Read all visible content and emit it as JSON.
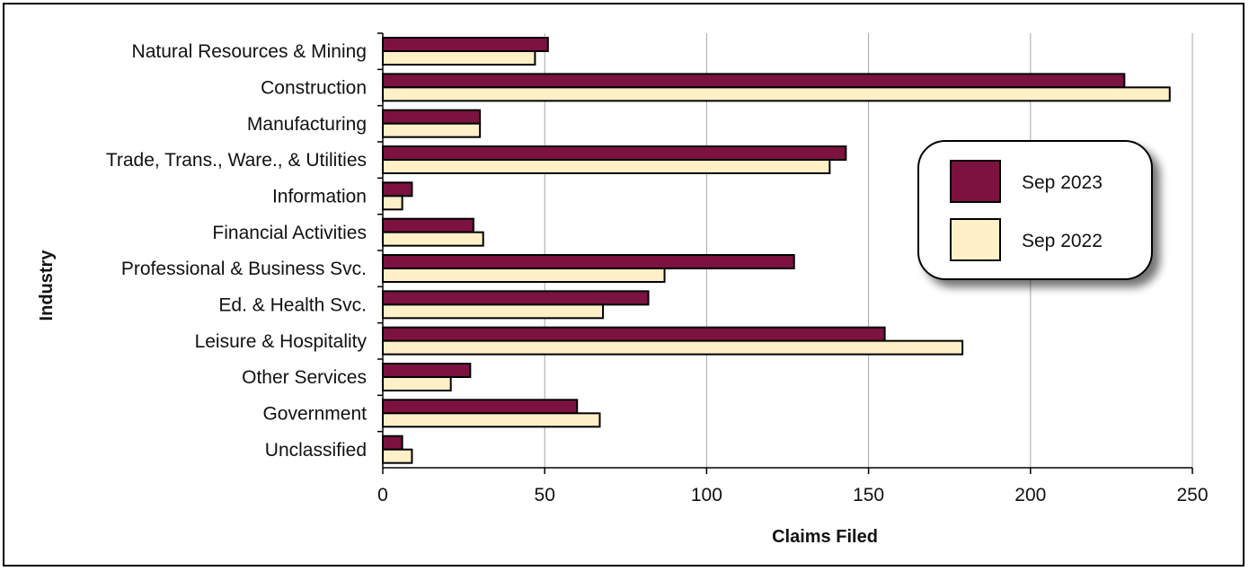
{
  "chart_data": {
    "type": "bar",
    "orientation": "horizontal",
    "categories": [
      "Natural Resources & Mining",
      "Construction",
      "Manufacturing",
      "Trade, Trans., Ware., & Utilities",
      "Information",
      "Financial Activities",
      "Professional & Business Svc.",
      "Ed. & Health Svc.",
      "Leisure & Hospitality",
      "Other Services",
      "Government",
      "Unclassified"
    ],
    "series": [
      {
        "name": "Sep 2023",
        "color": "#7b1240",
        "values": [
          51,
          229,
          30,
          143,
          9,
          28,
          127,
          82,
          155,
          27,
          60,
          6
        ]
      },
      {
        "name": "Sep 2022",
        "color": "#fff0c8",
        "values": [
          47,
          243,
          30,
          138,
          6,
          31,
          87,
          68,
          179,
          21,
          67,
          9
        ]
      }
    ],
    "xlabel": "Claims Filed",
    "ylabel": "Industry",
    "xlim": [
      0,
      250
    ],
    "xticks": [
      0,
      50,
      100,
      150,
      200,
      250
    ],
    "grid": "vertical",
    "legend_position": "right"
  }
}
